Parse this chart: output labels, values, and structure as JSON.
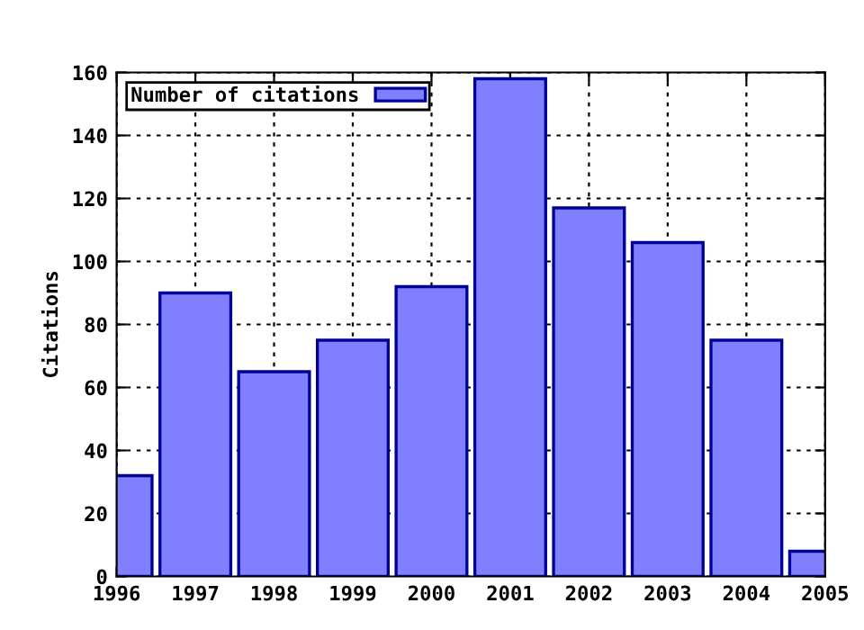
{
  "chart_data": {
    "type": "bar",
    "ylabel": "Citations",
    "x": [
      1996,
      1997,
      1998,
      1999,
      2000,
      2001,
      2002,
      2003,
      2004,
      2005
    ],
    "series": [
      {
        "name": "Number of citations",
        "color": "#8080ff",
        "values": [
          32,
          90,
          65,
          75,
          92,
          158,
          117,
          106,
          75,
          8
        ]
      }
    ],
    "xlim": [
      1996,
      2005
    ],
    "xticks": [
      1996,
      1997,
      1998,
      1999,
      2000,
      2001,
      2002,
      2003,
      2004,
      2005
    ],
    "ylim": [
      0,
      160
    ],
    "yticks": [
      0,
      20,
      40,
      60,
      80,
      100,
      120,
      140,
      160
    ],
    "grid": true,
    "legend": "top left"
  }
}
